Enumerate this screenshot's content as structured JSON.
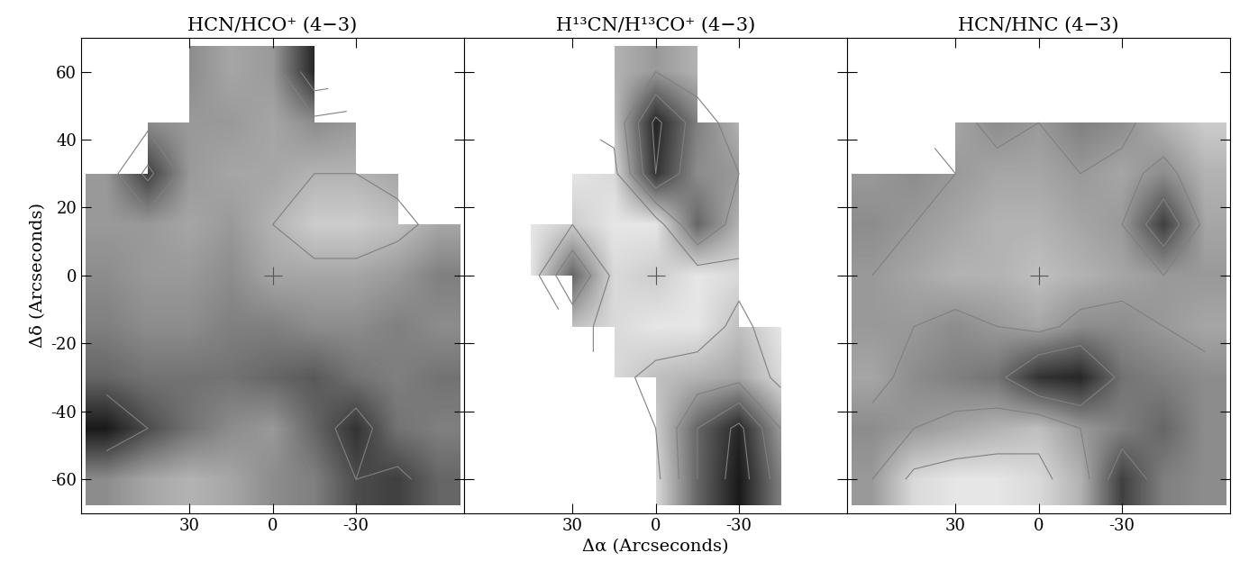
{
  "chart_data": [
    {
      "type": "heatmap",
      "title": "HCN/HCO⁺ (4−3)",
      "ylabel": "Δδ (Arcseconds)",
      "x": [
        60,
        45,
        30,
        15,
        0,
        -15,
        -30,
        -45,
        -60
      ],
      "y": [
        60,
        45,
        30,
        15,
        0,
        -15,
        -30,
        -45,
        -60
      ],
      "cells": [
        [
          null,
          null,
          0.45,
          0.35,
          0.4,
          0.85,
          null,
          null,
          null
        ],
        [
          null,
          0.45,
          0.4,
          0.4,
          0.35,
          0.45,
          0.4,
          null,
          null
        ],
        [
          0.4,
          0.75,
          0.4,
          0.35,
          0.35,
          0.3,
          0.3,
          0.35,
          null
        ],
        [
          0.4,
          0.4,
          0.35,
          0.4,
          0.3,
          0.2,
          0.2,
          0.25,
          0.35
        ],
        [
          0.45,
          0.4,
          0.4,
          0.45,
          0.35,
          0.35,
          0.35,
          0.4,
          0.5
        ],
        [
          0.5,
          0.45,
          0.45,
          0.5,
          0.5,
          0.45,
          0.45,
          0.5,
          0.45
        ],
        [
          0.6,
          0.55,
          0.55,
          0.55,
          0.6,
          0.65,
          0.55,
          0.5,
          0.55
        ],
        [
          0.9,
          0.7,
          0.55,
          0.45,
          0.4,
          0.6,
          0.8,
          0.55,
          0.5
        ],
        [
          0.45,
          0.35,
          0.3,
          0.35,
          0.45,
          0.5,
          0.7,
          0.75,
          0.6
        ]
      ],
      "color_range": [
        0,
        1
      ],
      "contour_levels": [
        0.3,
        0.5,
        0.7
      ],
      "color": "#000000",
      "marker": "+",
      "reference_point": [
        0,
        0
      ],
      "xlim": [
        69,
        -69
      ],
      "ylim": [
        -70,
        70
      ],
      "xticks": [
        30,
        0,
        -30
      ],
      "yticks": [
        -60,
        -40,
        -20,
        0,
        20,
        40,
        60
      ]
    },
    {
      "type": "heatmap",
      "title": "H¹³CN/H¹³CO⁺ (4−3)",
      "xlabel": "Δα (Arcseconds)",
      "x": [
        60,
        45,
        30,
        15,
        0,
        -15,
        -30,
        -45,
        -60
      ],
      "y": [
        60,
        45,
        30,
        15,
        0,
        -15,
        -30,
        -45,
        -60
      ],
      "cells": [
        [
          null,
          null,
          null,
          0.3,
          0.4,
          0.3,
          null,
          null,
          null
        ],
        [
          null,
          null,
          null,
          0.25,
          0.85,
          0.5,
          0.3,
          null,
          null
        ],
        [
          null,
          null,
          0.1,
          0.15,
          0.8,
          0.45,
          0.4,
          null,
          null
        ],
        [
          null,
          0.1,
          0.2,
          0.1,
          0.1,
          0.6,
          0.3,
          null,
          null
        ],
        [
          null,
          0.1,
          0.6,
          0.15,
          0.2,
          0.1,
          0.15,
          null,
          null
        ],
        [
          null,
          null,
          0.25,
          0.15,
          0.1,
          0.1,
          0.25,
          0.1,
          null
        ],
        [
          null,
          null,
          null,
          0.15,
          0.25,
          0.3,
          0.35,
          0.15,
          null
        ],
        [
          null,
          null,
          null,
          null,
          0.2,
          0.6,
          0.85,
          0.4,
          null
        ],
        [
          null,
          null,
          null,
          null,
          0.15,
          0.6,
          0.9,
          0.5,
          null
        ]
      ],
      "color_range": [
        0,
        1
      ],
      "contour_levels": [
        0.2,
        0.4,
        0.6,
        0.8
      ],
      "color": "#000000",
      "marker": "+",
      "reference_point": [
        0,
        0
      ],
      "tick_labels": "x",
      "xlim": [
        69,
        -69
      ],
      "ylim": [
        -70,
        70
      ],
      "xticks": [
        30,
        0,
        -30
      ],
      "yticks": [
        -60,
        -40,
        -20,
        0,
        20,
        40,
        60
      ]
    },
    {
      "type": "heatmap",
      "title": "HCN/HNC (4−3)",
      "x": [
        60,
        45,
        30,
        15,
        0,
        -15,
        -30,
        -45,
        -60
      ],
      "y": [
        60,
        45,
        30,
        15,
        0,
        -15,
        -30,
        -45,
        -60
      ],
      "cells": [
        [
          null,
          null,
          null,
          null,
          null,
          null,
          null,
          null,
          null
        ],
        [
          null,
          null,
          0.35,
          0.45,
          0.4,
          0.5,
          0.45,
          0.3,
          0.2
        ],
        [
          0.4,
          0.45,
          0.4,
          0.35,
          0.35,
          0.4,
          0.35,
          0.45,
          0.3
        ],
        [
          0.45,
          0.4,
          0.35,
          0.3,
          0.3,
          0.35,
          0.4,
          0.75,
          0.35
        ],
        [
          0.4,
          0.35,
          0.3,
          0.3,
          0.25,
          0.3,
          0.35,
          0.4,
          0.4
        ],
        [
          0.4,
          0.4,
          0.45,
          0.4,
          0.35,
          0.45,
          0.45,
          0.4,
          0.35
        ],
        [
          0.35,
          0.45,
          0.5,
          0.55,
          0.8,
          0.85,
          0.55,
          0.5,
          0.45
        ],
        [
          0.45,
          0.4,
          0.35,
          0.3,
          0.25,
          0.4,
          0.5,
          0.6,
          0.45
        ],
        [
          0.4,
          0.15,
          0.1,
          0.1,
          0.15,
          0.3,
          0.75,
          0.5,
          0.45
        ]
      ],
      "color_range": [
        0,
        1
      ],
      "contour_levels": [
        0.2,
        0.4,
        0.6
      ],
      "color": "#000000",
      "marker": "+",
      "reference_point": [
        0,
        0
      ],
      "tick_labels": "x",
      "xlim": [
        69,
        -69
      ],
      "ylim": [
        -70,
        70
      ],
      "xticks": [
        30,
        0,
        -30
      ],
      "yticks": [
        -60,
        -40,
        -20,
        0,
        20,
        40,
        60
      ]
    }
  ]
}
